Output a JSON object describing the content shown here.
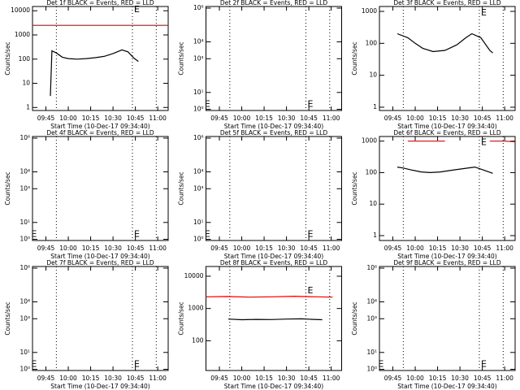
{
  "chart_data": [
    {
      "type": "line",
      "title": "Det 1f BLACK = Events, RED = LLD",
      "xlabel": "Start Time (10-Dec-17 09:34:40)",
      "ylabel": "Counts/sec",
      "log_y": true,
      "xlim": [
        576,
        667
      ],
      "xticks": [
        {
          "value": 585,
          "label": "09:45"
        },
        {
          "value": 600,
          "label": "10:00"
        },
        {
          "value": 615,
          "label": "10:15"
        },
        {
          "value": 630,
          "label": "10:30"
        },
        {
          "value": 645,
          "label": "10:45"
        },
        {
          "value": 660,
          "label": "11:00"
        }
      ],
      "ylim": [
        0.75,
        15000
      ],
      "yticks": [
        1,
        10,
        100,
        1000,
        10000
      ],
      "series": [
        {
          "color": "#000000",
          "x": [
            588,
            589,
            592,
            596,
            600,
            606,
            612,
            618,
            624,
            630,
            636,
            640,
            644,
            647
          ],
          "values": [
            3,
            220,
            180,
            120,
            105,
            100,
            105,
            115,
            130,
            170,
            240,
            200,
            110,
            80
          ]
        },
        {
          "color": "#e00000",
          "x": [
            576,
            600,
            630,
            660,
            667
          ],
          "values": [
            2500,
            2500,
            2500,
            2500,
            2500
          ]
        }
      ],
      "markers": [
        592,
        643,
        659
      ],
      "annotations": [
        {
          "text": "E",
          "x": 646,
          "y": 11000
        }
      ]
    },
    {
      "type": "line",
      "title": "Det 2f BLACK = Events, RED = LLD",
      "xlabel": "Start Time (10-Dec-17 09:34:40)",
      "ylabel": "Counts/sec",
      "log_y": true,
      "xlim": [
        576,
        667
      ],
      "xticks": [
        {
          "value": 585,
          "label": "09:45"
        },
        {
          "value": 600,
          "label": "10:00"
        },
        {
          "value": 615,
          "label": "10:15"
        },
        {
          "value": 630,
          "label": "10:30"
        },
        {
          "value": 645,
          "label": "10:45"
        },
        {
          "value": 660,
          "label": "11:00"
        }
      ],
      "ylim": [
        0.85,
        1250000
      ],
      "yticks": [
        {
          "value": 1,
          "label": "10⁰"
        },
        {
          "value": 10,
          "label": "10¹"
        },
        {
          "value": 1000,
          "label": "10³"
        },
        {
          "value": 10000,
          "label": "10⁴"
        },
        {
          "value": 1000000,
          "label": "10⁶"
        }
      ],
      "series": [],
      "markers": [
        592,
        643,
        659
      ],
      "annotations": [
        {
          "text": "E",
          "x": 577,
          "y": 2
        },
        {
          "text": "E",
          "x": 646,
          "y": 2
        }
      ]
    },
    {
      "type": "line",
      "title": "Det 3f BLACK = Events, RED = LLD",
      "xlabel": "Start Time (10-Dec-17 09:34:40)",
      "ylabel": "Counts/sec",
      "log_y": true,
      "xlim": [
        576,
        667
      ],
      "xticks": [
        {
          "value": 585,
          "label": "09:45"
        },
        {
          "value": 600,
          "label": "10:00"
        },
        {
          "value": 615,
          "label": "10:15"
        },
        {
          "value": 630,
          "label": "10:30"
        },
        {
          "value": 645,
          "label": "10:45"
        },
        {
          "value": 660,
          "label": "11:00"
        }
      ],
      "ylim": [
        0.79,
        1420
      ],
      "yticks": [
        1,
        10,
        100,
        1000
      ],
      "series": [
        {
          "color": "#000000",
          "x": [
            588,
            595,
            600,
            605,
            612,
            620,
            628,
            634,
            638,
            644,
            650,
            652
          ],
          "values": [
            200,
            150,
            100,
            70,
            55,
            60,
            90,
            150,
            200,
            150,
            60,
            50
          ]
        }
      ],
      "markers": [
        592,
        643,
        659
      ],
      "annotations": [
        {
          "text": "E",
          "x": 646,
          "y": 900
        }
      ]
    },
    {
      "type": "line",
      "title": "Det 4f BLACK = Events, RED = LLD",
      "xlabel": "Start Time (10-Dec-17 09:34:40)",
      "ylabel": "Counts/sec",
      "log_y": true,
      "xlim": [
        576,
        667
      ],
      "xticks": [
        {
          "value": 585,
          "label": "09:45"
        },
        {
          "value": 600,
          "label": "10:00"
        },
        {
          "value": 615,
          "label": "10:15"
        },
        {
          "value": 630,
          "label": "10:30"
        },
        {
          "value": 645,
          "label": "10:45"
        },
        {
          "value": 660,
          "label": "11:00"
        }
      ],
      "ylim": [
        0.85,
        1250000
      ],
      "yticks": [
        {
          "value": 1,
          "label": "10⁰"
        },
        {
          "value": 10,
          "label": "10¹"
        },
        {
          "value": 1000,
          "label": "10³"
        },
        {
          "value": 10000,
          "label": "10⁴"
        },
        {
          "value": 1000000,
          "label": "10⁶"
        }
      ],
      "series": [],
      "markers": [
        592,
        643,
        659
      ],
      "annotations": [
        {
          "text": "E",
          "x": 577,
          "y": 2
        },
        {
          "text": "E",
          "x": 646,
          "y": 2
        }
      ]
    },
    {
      "type": "line",
      "title": "Det 5f BLACK = Events, RED = LLD",
      "xlabel": "Start Time (10-Dec-17 09:34:40)",
      "ylabel": "Counts/sec",
      "log_y": true,
      "xlim": [
        576,
        667
      ],
      "xticks": [
        {
          "value": 585,
          "label": "09:45"
        },
        {
          "value": 600,
          "label": "10:00"
        },
        {
          "value": 615,
          "label": "10:15"
        },
        {
          "value": 630,
          "label": "10:30"
        },
        {
          "value": 645,
          "label": "10:45"
        },
        {
          "value": 660,
          "label": "11:00"
        }
      ],
      "ylim": [
        0.85,
        1250000
      ],
      "yticks": [
        {
          "value": 1,
          "label": "10⁰"
        },
        {
          "value": 10,
          "label": "10¹"
        },
        {
          "value": 1000,
          "label": "10³"
        },
        {
          "value": 10000,
          "label": "10⁴"
        },
        {
          "value": 1000000,
          "label": "10⁶"
        }
      ],
      "series": [],
      "markers": [
        592,
        643,
        659
      ],
      "annotations": [
        {
          "text": "E",
          "x": 577,
          "y": 2
        },
        {
          "text": "E",
          "x": 646,
          "y": 2
        }
      ]
    },
    {
      "type": "line",
      "title": "Det 6f BLACK = Events, RED = LLD",
      "xlabel": "Start Time (10-Dec-17 09:34:40)",
      "ylabel": "Counts/sec",
      "log_y": true,
      "xlim": [
        576,
        667
      ],
      "xticks": [
        {
          "value": 585,
          "label": "09:45"
        },
        {
          "value": 600,
          "label": "10:00"
        },
        {
          "value": 615,
          "label": "10:15"
        },
        {
          "value": 630,
          "label": "10:30"
        },
        {
          "value": 645,
          "label": "10:45"
        },
        {
          "value": 660,
          "label": "11:00"
        }
      ],
      "ylim": [
        0.7,
        1400
      ],
      "yticks": [
        1,
        10,
        100,
        1000
      ],
      "series": [
        {
          "color": "#000000",
          "x": [
            588,
            592,
            598,
            604,
            610,
            617,
            625,
            633,
            640,
            646,
            652
          ],
          "values": [
            150,
            140,
            120,
            105,
            100,
            105,
            120,
            135,
            150,
            120,
            95
          ]
        },
        {
          "color": "#e00000",
          "x": [
            595,
            605,
            620,
            635,
            650,
            660,
            667
          ],
          "values": [
            1000,
            1000,
            1000,
            null,
            1000,
            1000,
            950
          ]
        }
      ],
      "markers": [
        592,
        643,
        659
      ],
      "annotations": [
        {
          "text": "E",
          "x": 646,
          "y": 900
        }
      ]
    },
    {
      "type": "line",
      "title": "Det 7f BLACK = Events, RED = LLD",
      "xlabel": "Start Time (10-Dec-17 09:34:40)",
      "ylabel": "Counts/sec",
      "log_y": true,
      "xlim": [
        576,
        667
      ],
      "xticks": [
        {
          "value": 585,
          "label": "09:45"
        },
        {
          "value": 600,
          "label": "10:00"
        },
        {
          "value": 615,
          "label": "10:15"
        },
        {
          "value": 630,
          "label": "10:30"
        },
        {
          "value": 645,
          "label": "10:45"
        },
        {
          "value": 660,
          "label": "11:00"
        }
      ],
      "ylim": [
        0.85,
        1250000
      ],
      "yticks": [
        {
          "value": 1,
          "label": "10⁰"
        },
        {
          "value": 10,
          "label": "10¹"
        },
        {
          "value": 1000,
          "label": "10³"
        },
        {
          "value": 10000,
          "label": "10⁴"
        },
        {
          "value": 1000000,
          "label": "10⁶"
        }
      ],
      "series": [],
      "markers": [
        592,
        643,
        659
      ],
      "annotations": [
        {
          "text": "E",
          "x": 577,
          "y": 2
        },
        {
          "text": "E",
          "x": 646,
          "y": 2
        }
      ]
    },
    {
      "type": "line",
      "title": "Det 8f BLACK = Events, RED = LLD",
      "xlabel": "Start Time (10-Dec-17 09:34:40)",
      "ylabel": "Counts/sec",
      "log_y": true,
      "xlim": [
        576,
        667
      ],
      "xticks": [
        {
          "value": 585,
          "label": "09:45"
        },
        {
          "value": 600,
          "label": "10:00"
        },
        {
          "value": 615,
          "label": "10:15"
        },
        {
          "value": 630,
          "label": "10:30"
        },
        {
          "value": 645,
          "label": "10:45"
        },
        {
          "value": 660,
          "label": "11:00"
        }
      ],
      "ylim": [
        12,
        20000
      ],
      "yticks": [
        100,
        1000,
        10000
      ],
      "series": [
        {
          "color": "#000000",
          "x": [
            591,
            600,
            610,
            620,
            630,
            640,
            648,
            654
          ],
          "values": [
            470,
            450,
            460,
            455,
            470,
            480,
            460,
            450
          ]
        },
        {
          "color": "#e00000",
          "x": [
            576,
            590,
            605,
            620,
            635,
            650,
            661
          ],
          "values": [
            2300,
            2350,
            2250,
            2300,
            2400,
            2300,
            2250
          ]
        }
      ],
      "markers": [
        592,
        643,
        659
      ],
      "annotations": [
        {
          "text": "E",
          "x": 646,
          "y": 3500
        }
      ]
    },
    {
      "type": "line",
      "title": "Det 9f BLACK = Events, RED = LLD",
      "xlabel": "Start Time (10-Dec-17 09:34:40)",
      "ylabel": "Counts/sec",
      "log_y": true,
      "xlim": [
        576,
        667
      ],
      "xticks": [
        {
          "value": 585,
          "label": "09:45"
        },
        {
          "value": 600,
          "label": "10:00"
        },
        {
          "value": 615,
          "label": "10:15"
        },
        {
          "value": 630,
          "label": "10:30"
        },
        {
          "value": 645,
          "label": "10:45"
        },
        {
          "value": 660,
          "label": "11:00"
        }
      ],
      "ylim": [
        0.85,
        1250000
      ],
      "yticks": [
        {
          "value": 1,
          "label": "10⁰"
        },
        {
          "value": 10,
          "label": "10¹"
        },
        {
          "value": 1000,
          "label": "10³"
        },
        {
          "value": 10000,
          "label": "10⁴"
        },
        {
          "value": 1000000,
          "label": "10⁶"
        }
      ],
      "series": [],
      "markers": [
        592,
        643,
        659
      ],
      "annotations": [
        {
          "text": "E",
          "x": 577,
          "y": 2
        },
        {
          "text": "E",
          "x": 646,
          "y": 2
        }
      ]
    }
  ]
}
